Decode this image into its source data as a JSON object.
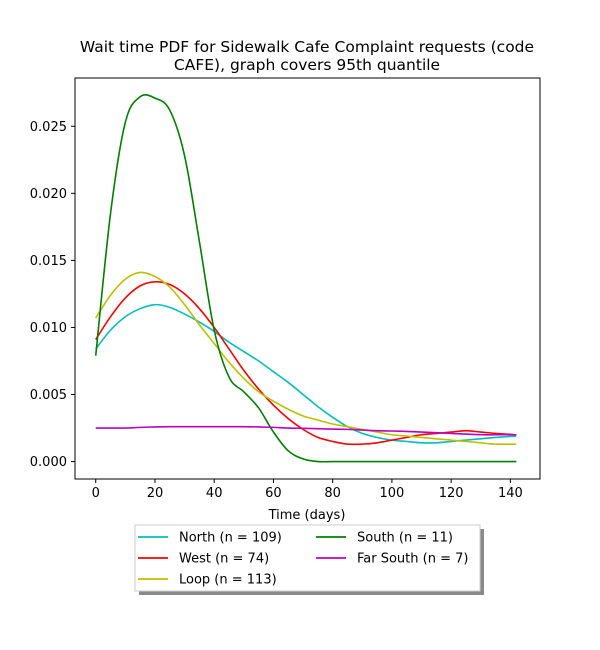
{
  "chart_data": {
    "type": "line",
    "title_lines": [
      "Wait time PDF for Sidewalk Cafe Complaint  requests (code",
      "CAFE), graph covers 95th quantile"
    ],
    "xlabel": "Time (days)",
    "ylabel": "",
    "xlim": [
      -7,
      150
    ],
    "ylim": [
      -0.0013,
      0.0286
    ],
    "xticks": [
      0,
      20,
      40,
      60,
      80,
      100,
      120,
      140
    ],
    "yticks": [
      0.0,
      0.005,
      0.01,
      0.015,
      0.02,
      0.025
    ],
    "ytick_labels": [
      "0.000",
      "0.005",
      "0.010",
      "0.015",
      "0.020",
      "0.025"
    ],
    "grid": false,
    "legend_position": "below plot, centered",
    "x": [
      0,
      5,
      10,
      15,
      20,
      25,
      30,
      35,
      40,
      45,
      50,
      55,
      60,
      65,
      70,
      75,
      80,
      85,
      90,
      95,
      100,
      105,
      110,
      115,
      120,
      125,
      130,
      135,
      142
    ],
    "series": [
      {
        "name": "North (n = 109)",
        "color": "#00bfbf",
        "values": [
          0.0084,
          0.0098,
          0.0108,
          0.0114,
          0.0117,
          0.0115,
          0.011,
          0.0104,
          0.0097,
          0.0089,
          0.0082,
          0.0075,
          0.0067,
          0.0059,
          0.005,
          0.0041,
          0.0033,
          0.0026,
          0.0021,
          0.0018,
          0.0016,
          0.0015,
          0.0014,
          0.0014,
          0.0015,
          0.0016,
          0.0017,
          0.0018,
          0.0019
        ]
      },
      {
        "name": "West (n = 74)",
        "color": "#ff0000",
        "values": [
          0.0091,
          0.0108,
          0.0122,
          0.0131,
          0.0134,
          0.0132,
          0.0125,
          0.0114,
          0.01,
          0.0084,
          0.0068,
          0.0054,
          0.0042,
          0.0032,
          0.0024,
          0.0018,
          0.0015,
          0.0013,
          0.0013,
          0.0014,
          0.0016,
          0.0018,
          0.002,
          0.0021,
          0.0022,
          0.0023,
          0.0022,
          0.0021,
          0.002
        ]
      },
      {
        "name": "Loop (n = 113)",
        "color": "#bfbf00",
        "values": [
          0.0107,
          0.0124,
          0.0136,
          0.0141,
          0.0138,
          0.013,
          0.0117,
          0.0102,
          0.0088,
          0.0074,
          0.0062,
          0.0052,
          0.0045,
          0.0039,
          0.0034,
          0.0031,
          0.0028,
          0.0026,
          0.0024,
          0.0022,
          0.002,
          0.0019,
          0.0018,
          0.0017,
          0.0016,
          0.0015,
          0.0014,
          0.0013,
          0.0013
        ]
      },
      {
        "name": "South (n = 11)",
        "color": "#008000",
        "values": [
          0.0079,
          0.0185,
          0.0253,
          0.0272,
          0.0271,
          0.0262,
          0.0228,
          0.0164,
          0.0098,
          0.0063,
          0.0052,
          0.004,
          0.0022,
          0.0008,
          0.0002,
          0.0,
          0.0,
          0.0,
          0.0,
          0.0,
          0.0,
          0.0,
          0.0,
          0.0,
          0.0,
          0.0,
          0.0,
          0.0,
          0.0
        ]
      },
      {
        "name": "Far South (n = 7)",
        "color": "#bf00bf",
        "values": [
          0.0025,
          0.0025,
          0.0025,
          0.00255,
          0.00258,
          0.0026,
          0.0026,
          0.0026,
          0.0026,
          0.0026,
          0.0026,
          0.00258,
          0.00255,
          0.0025,
          0.00248,
          0.00245,
          0.00242,
          0.0024,
          0.00235,
          0.0023,
          0.00228,
          0.00225,
          0.0022,
          0.00215,
          0.0021,
          0.00205,
          0.002,
          0.002,
          0.002
        ]
      }
    ],
    "legend_order": [
      0,
      1,
      2,
      3,
      4
    ]
  }
}
